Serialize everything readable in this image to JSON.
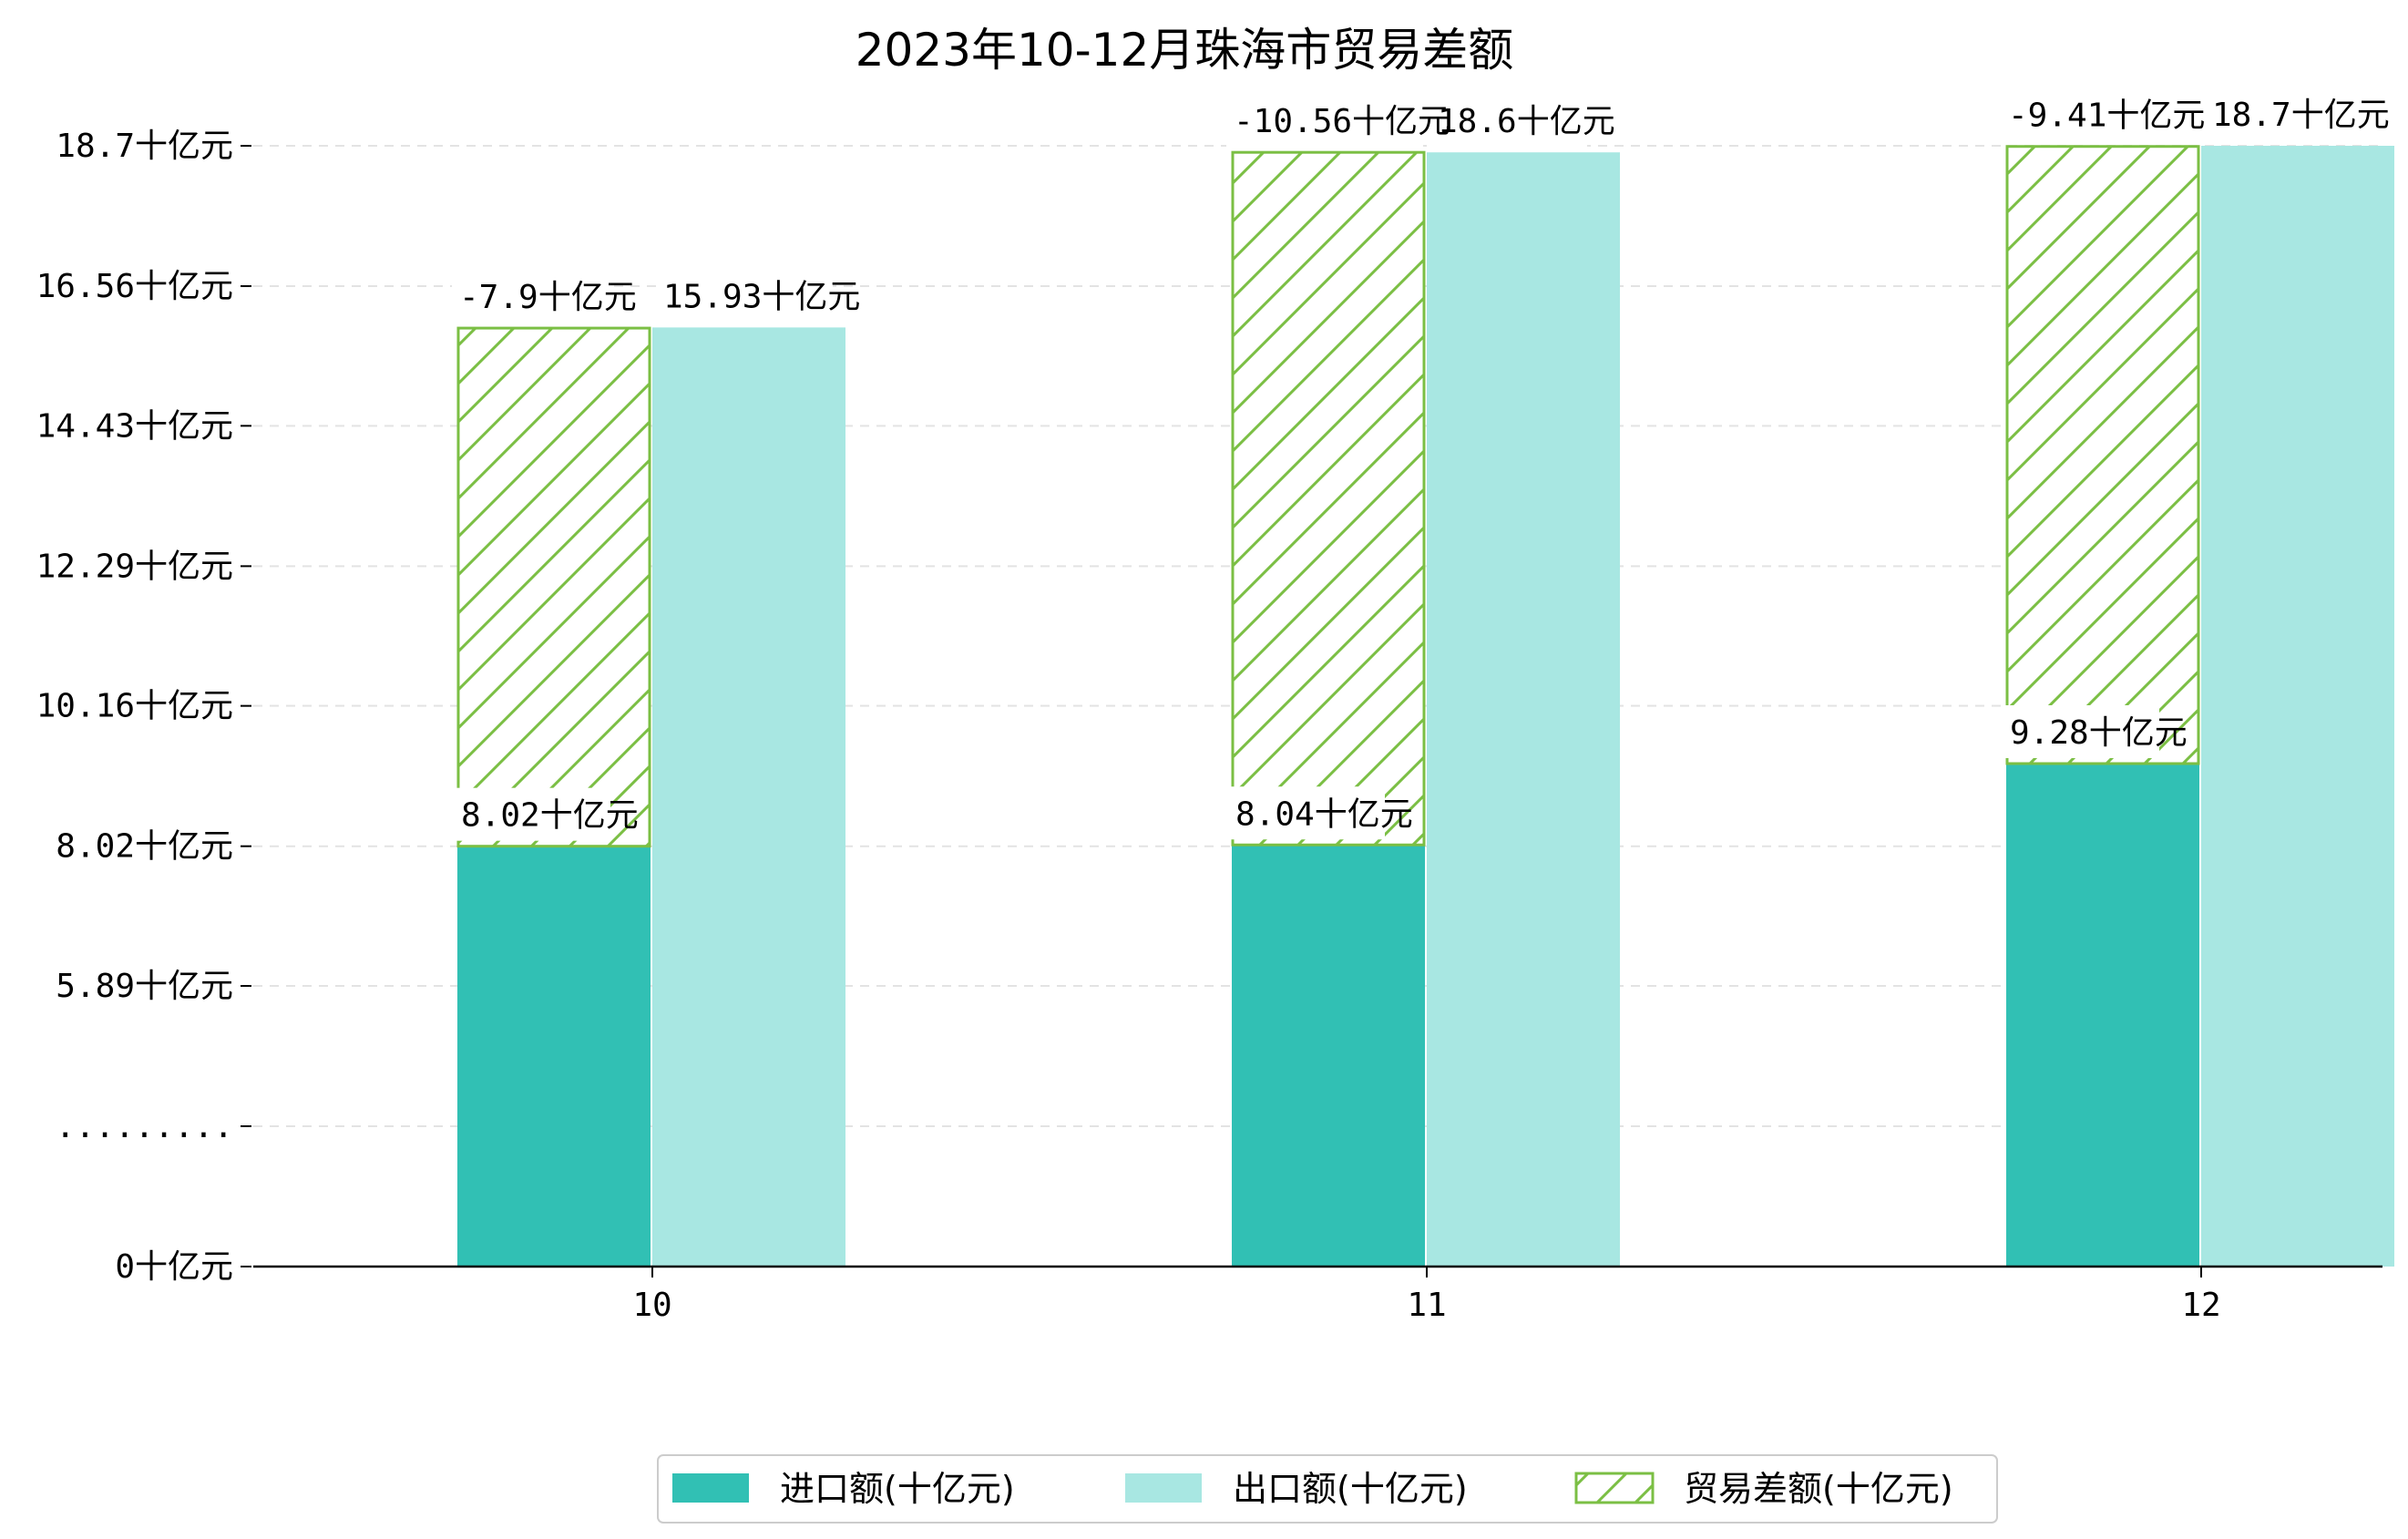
{
  "chart_data": {
    "type": "bar",
    "title": "2023年10-12月珠海市贸易差额",
    "categories": [
      "10",
      "11",
      "12"
    ],
    "series": [
      {
        "name": "进口额(十亿元)",
        "values": [
          8.02,
          8.04,
          9.28
        ],
        "color": "#31c0b4",
        "style": "solid"
      },
      {
        "name": "出口额(十亿元)",
        "values": [
          15.93,
          18.6,
          18.7
        ],
        "color": "#a8e7e2",
        "style": "solid"
      },
      {
        "name": "贸易差额(十亿元)",
        "values": [
          -7.9,
          -10.56,
          -9.41
        ],
        "color": "#7bbf44",
        "style": "hatched"
      }
    ],
    "data_labels": {
      "import": [
        "8.02十亿元",
        "8.04十亿元",
        "9.28十亿元"
      ],
      "export": [
        "15.93十亿元",
        "18.6十亿元",
        "18.7十亿元"
      ],
      "balance": [
        "-7.9十亿元",
        "-10.56十亿元",
        "-9.41十亿元"
      ]
    },
    "y_ticks": [
      {
        "value": 0,
        "label": "0十亿元"
      },
      {
        "value": null,
        "label": "........."
      },
      {
        "value": 5.89,
        "label": "5.89十亿元"
      },
      {
        "value": 8.02,
        "label": "8.02十亿元"
      },
      {
        "value": 10.16,
        "label": "10.16十亿元"
      },
      {
        "value": 12.29,
        "label": "12.29十亿元"
      },
      {
        "value": 14.43,
        "label": "14.43十亿元"
      },
      {
        "value": 16.56,
        "label": "16.56十亿元"
      },
      {
        "value": 18.7,
        "label": "18.7十亿元"
      }
    ],
    "axis_break": true,
    "grid": "horizontal dashed",
    "legend_position": "bottom-center"
  }
}
